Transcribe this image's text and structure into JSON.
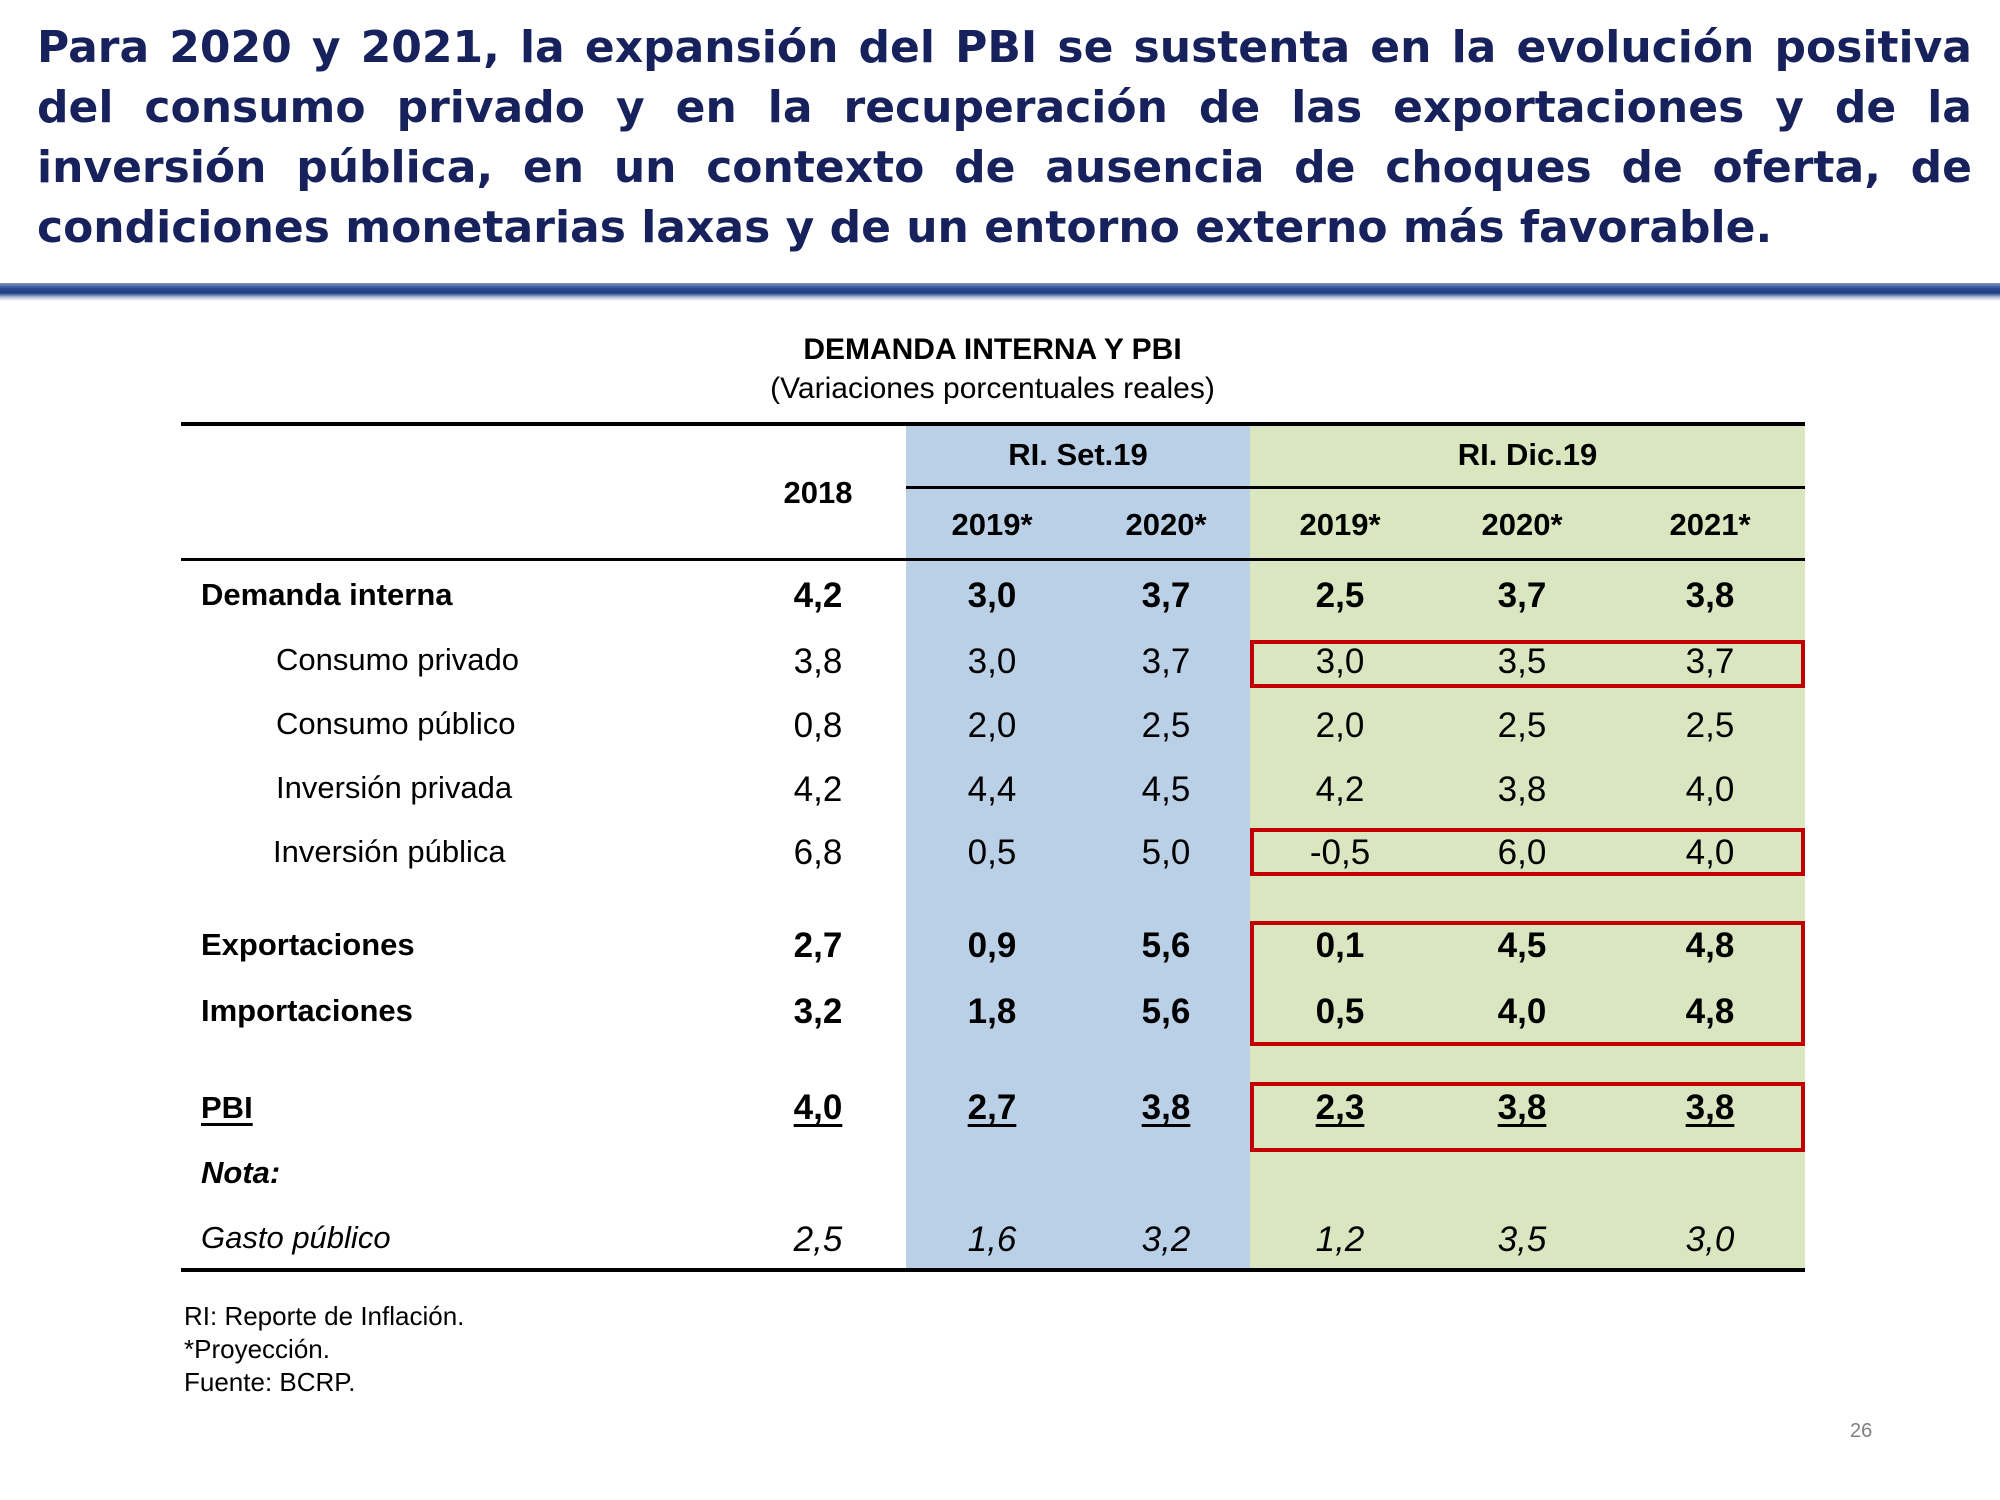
{
  "headline": "Para 2020 y 2021, la expansión del PBI se sustenta en la evolución positiva del consumo privado y en la recuperación de las exportaciones y de la inversión pública, en un contexto de ausencia de choques de oferta, de condiciones monetarias laxas y de un entorno externo más favorable.",
  "table": {
    "title": "DEMANDA INTERNA Y PBI",
    "subtitle": "(Variaciones porcentuales reales)",
    "groups": [
      "RI. Set.19",
      "RI. Dic.19"
    ],
    "columns": [
      "2018",
      "2019*",
      "2020*",
      "2019*",
      "2020*",
      "2021*"
    ],
    "rows": [
      {
        "label": "Demanda interna",
        "values": [
          "4,2",
          "3,0",
          "3,7",
          "2,5",
          "3,7",
          "3,8"
        ]
      },
      {
        "label": "Consumo privado",
        "values": [
          "3,8",
          "3,0",
          "3,7",
          "3,0",
          "3,5",
          "3,7"
        ]
      },
      {
        "label": "Consumo público",
        "values": [
          "0,8",
          "2,0",
          "2,5",
          "2,0",
          "2,5",
          "2,5"
        ]
      },
      {
        "label": "Inversión privada",
        "values": [
          "4,2",
          "4,4",
          "4,5",
          "4,2",
          "3,8",
          "4,0"
        ]
      },
      {
        "label": "Inversión pública",
        "values": [
          "6,8",
          "0,5",
          "5,0",
          "-0,5",
          "6,0",
          "4,0"
        ]
      },
      {
        "label": "Exportaciones",
        "values": [
          "2,7",
          "0,9",
          "5,6",
          "0,1",
          "4,5",
          "4,8"
        ]
      },
      {
        "label": "Importaciones",
        "values": [
          "3,2",
          "1,8",
          "5,6",
          "0,5",
          "4,0",
          "4,8"
        ]
      },
      {
        "label": "PBI",
        "values": [
          "4,0",
          "2,7",
          "3,8",
          "2,3",
          "3,8",
          "3,8"
        ]
      },
      {
        "label": "Nota:",
        "values": []
      },
      {
        "label": "Gasto público",
        "values": [
          "2,5",
          "1,6",
          "3,2",
          "1,2",
          "3,5",
          "3,0"
        ]
      }
    ],
    "highlight_color": "#c00000",
    "group_colors": {
      "set": "#bad0e7",
      "dic": "#d9e6bf"
    }
  },
  "footnotes": [
    "RI: Reporte de Inflación.",
    "*Proyección.",
    "Fuente: BCRP."
  ],
  "page_number": "26"
}
